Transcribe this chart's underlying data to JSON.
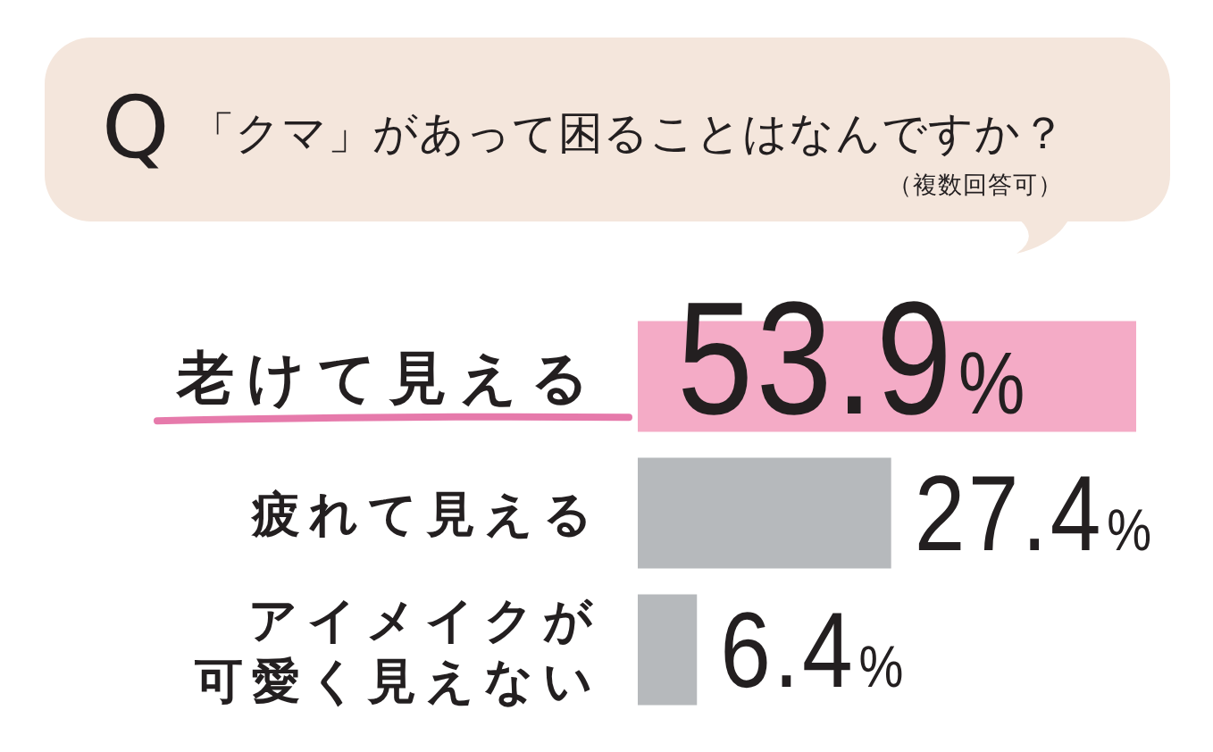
{
  "chart_data": {
    "type": "bar",
    "orientation": "horizontal",
    "title": "Q 「クマ」があって困ることはなんですか？",
    "subtitle": "（複数回答可）",
    "categories": [
      "老けて見える",
      "疲れて見える",
      "アイメイクが可愛く見えない"
    ],
    "values": [
      53.9,
      27.4,
      6.4
    ],
    "colors": [
      "#f4abc6",
      "#b6b9bc",
      "#b6b9bc"
    ],
    "value_labels": [
      "53.9%",
      "27.4%",
      "6.4%"
    ]
  }
}
